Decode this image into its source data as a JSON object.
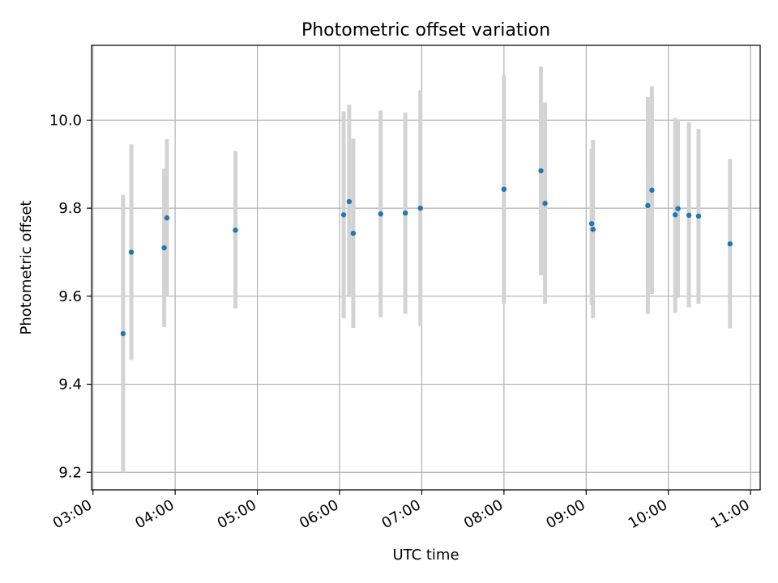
{
  "chart_data": {
    "type": "scatter",
    "title": "Photometric offset variation",
    "xlabel": "UTC time",
    "ylabel": "Photometric offset",
    "x_unit": "HH:MM",
    "xlim": [
      "02:59",
      "11:07"
    ],
    "ylim": [
      9.16,
      10.17
    ],
    "x_ticks": [
      "03:00",
      "04:00",
      "05:00",
      "06:00",
      "07:00",
      "08:00",
      "09:00",
      "10:00",
      "11:00"
    ],
    "y_ticks": [
      9.2,
      9.4,
      9.6,
      9.8,
      10.0
    ],
    "y_tick_labels": [
      "9.2",
      "9.4",
      "9.6",
      "9.8",
      "10.0"
    ],
    "grid": true,
    "legend": "none",
    "colors": {
      "marker": "#1f77b4",
      "errorbar": "#d3d3d3",
      "grid": "#b0b0b0",
      "axes": "#000000"
    },
    "points": [
      {
        "x": "03:22",
        "y": 9.515,
        "ylow": 9.2,
        "yhigh": 9.83
      },
      {
        "x": "03:28",
        "y": 9.7,
        "ylow": 9.455,
        "yhigh": 9.945
      },
      {
        "x": "03:52",
        "y": 9.71,
        "ylow": 9.53,
        "yhigh": 9.89
      },
      {
        "x": "03:54",
        "y": 9.778,
        "ylow": 9.6,
        "yhigh": 9.957
      },
      {
        "x": "04:44",
        "y": 9.75,
        "ylow": 9.572,
        "yhigh": 9.93
      },
      {
        "x": "06:03",
        "y": 9.785,
        "ylow": 9.55,
        "yhigh": 10.02
      },
      {
        "x": "06:07",
        "y": 9.815,
        "ylow": 9.6,
        "yhigh": 10.035
      },
      {
        "x": "06:10",
        "y": 9.743,
        "ylow": 9.528,
        "yhigh": 9.958
      },
      {
        "x": "06:30",
        "y": 9.787,
        "ylow": 9.552,
        "yhigh": 10.022
      },
      {
        "x": "06:48",
        "y": 9.789,
        "ylow": 9.56,
        "yhigh": 10.017
      },
      {
        "x": "06:59",
        "y": 9.8,
        "ylow": 9.532,
        "yhigh": 10.068
      },
      {
        "x": "08:00",
        "y": 9.843,
        "ylow": 9.583,
        "yhigh": 10.103
      },
      {
        "x": "08:27",
        "y": 9.885,
        "ylow": 9.648,
        "yhigh": 10.122
      },
      {
        "x": "08:30",
        "y": 9.811,
        "ylow": 9.583,
        "yhigh": 10.04
      },
      {
        "x": "09:04",
        "y": 9.765,
        "ylow": 9.58,
        "yhigh": 9.935
      },
      {
        "x": "09:05",
        "y": 9.752,
        "ylow": 9.55,
        "yhigh": 9.955
      },
      {
        "x": "09:45",
        "y": 9.806,
        "ylow": 9.56,
        "yhigh": 10.052
      },
      {
        "x": "09:48",
        "y": 9.841,
        "ylow": 9.605,
        "yhigh": 10.077
      },
      {
        "x": "10:05",
        "y": 9.785,
        "ylow": 9.562,
        "yhigh": 10.005
      },
      {
        "x": "10:07",
        "y": 9.799,
        "ylow": 9.597,
        "yhigh": 10.002
      },
      {
        "x": "10:15",
        "y": 9.784,
        "ylow": 9.575,
        "yhigh": 9.995
      },
      {
        "x": "10:22",
        "y": 9.782,
        "ylow": 9.583,
        "yhigh": 9.98
      },
      {
        "x": "10:45",
        "y": 9.719,
        "ylow": 9.527,
        "yhigh": 9.912
      }
    ]
  }
}
